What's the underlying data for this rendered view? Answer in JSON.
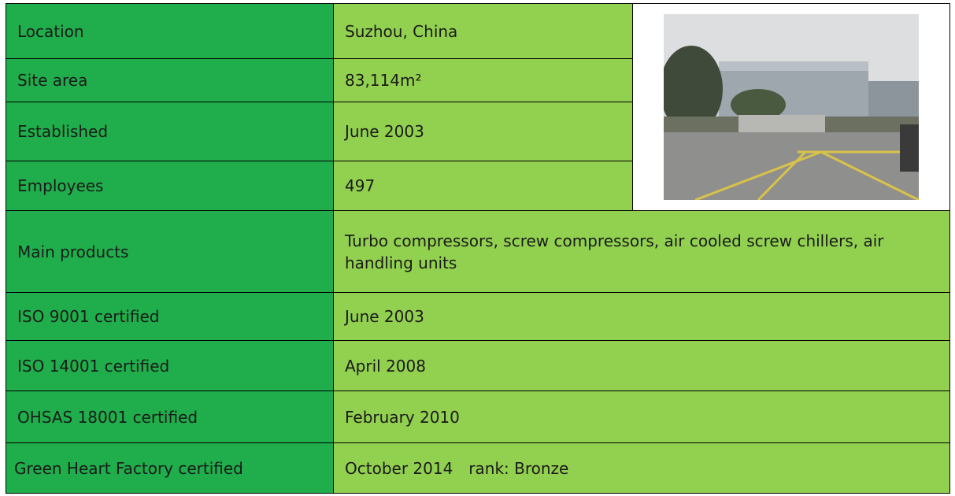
{
  "table": {
    "rows": [
      [
        "Location",
        "Suzhou, China"
      ],
      [
        "Site area",
        "83,114m²"
      ],
      [
        "Established",
        "June 2003"
      ],
      [
        "Employees",
        "497"
      ],
      [
        "Main products",
        "Turbo compressors, screw compressors, air cooled screw chillers, air handling units"
      ],
      [
        "ISO 9001 certified",
        "June 2003"
      ],
      [
        "ISO 14001 certified",
        "April 2008"
      ],
      [
        "OHSAS 18001 certified",
        "February 2010"
      ],
      [
        "Green Heart Factory certified",
        "October 2014　rank: Bronze"
      ]
    ]
  }
}
